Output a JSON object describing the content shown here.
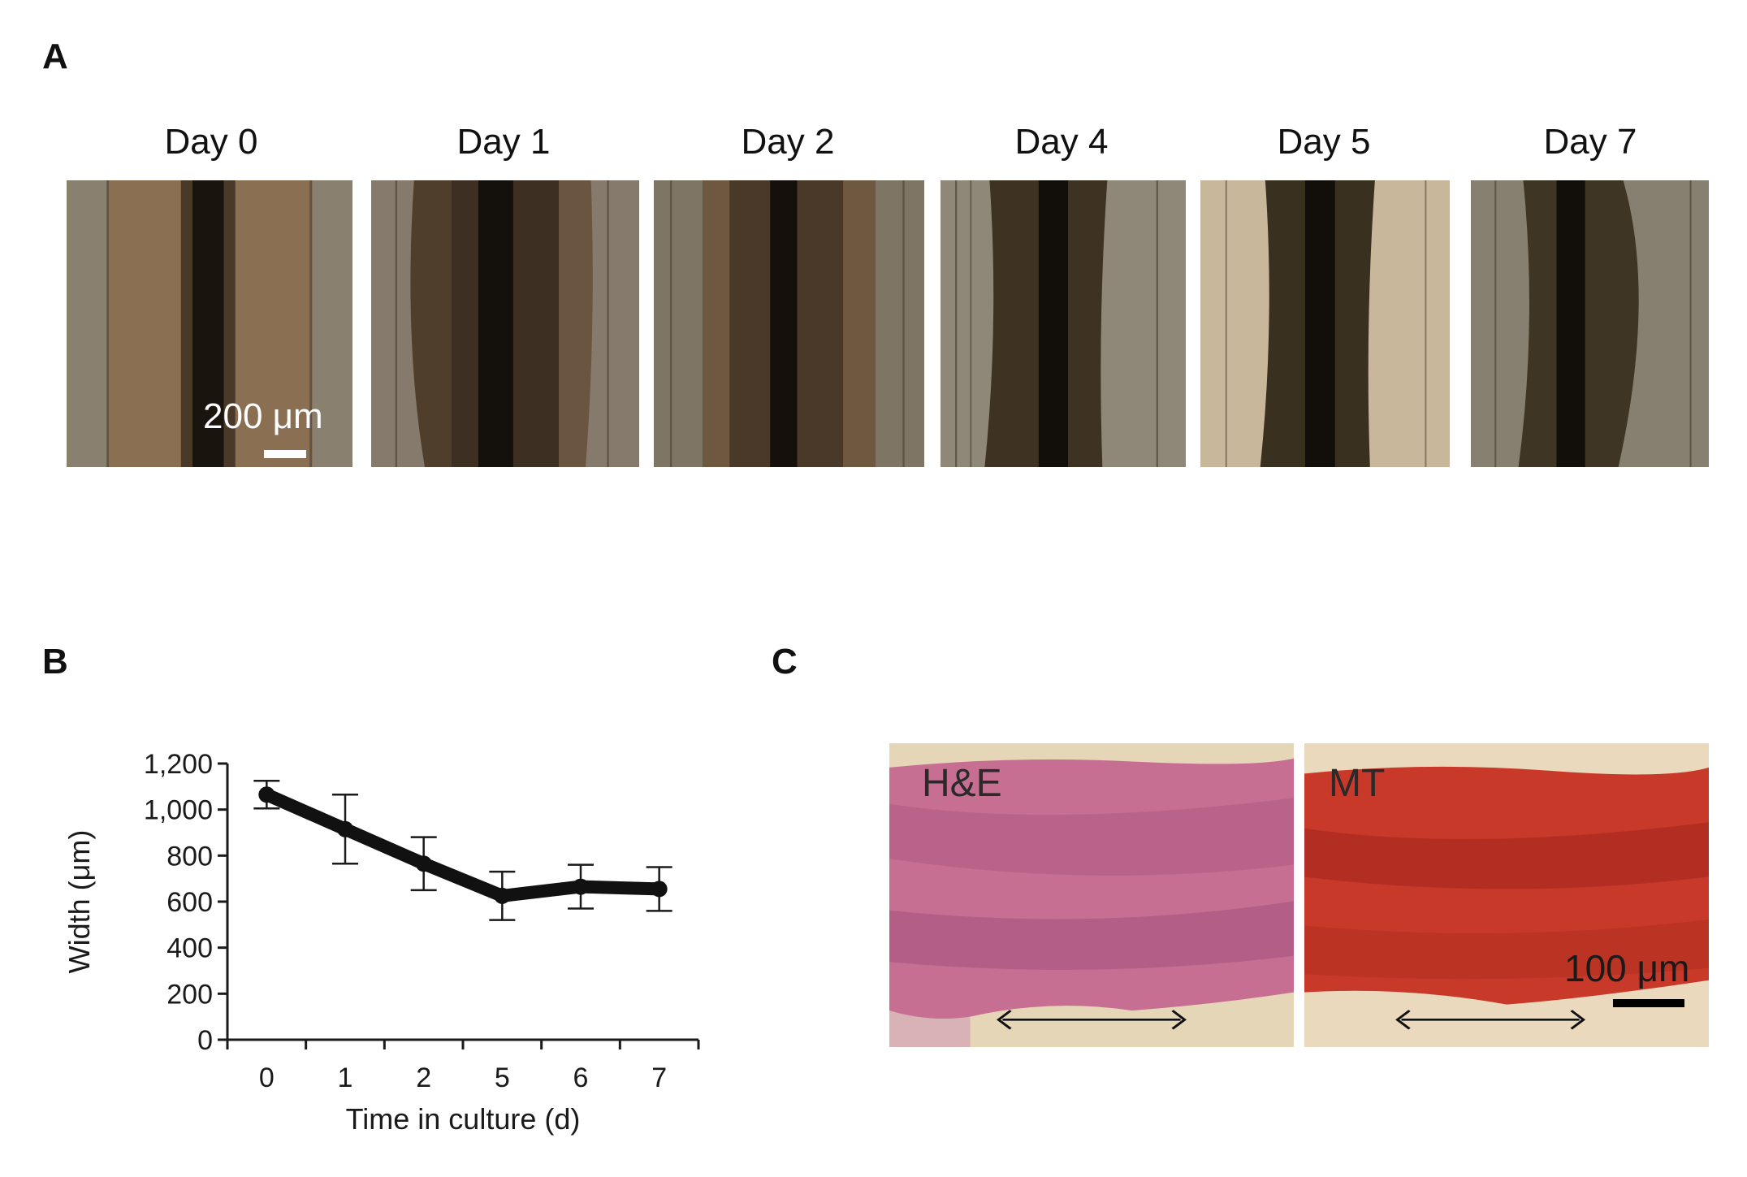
{
  "panels": {
    "a": "A",
    "b": "B",
    "c": "C"
  },
  "panel_a": {
    "days": [
      "Day 0",
      "Day 1",
      "Day 2",
      "Day 4",
      "Day 5",
      "Day 7"
    ],
    "scale_bar": "200 μm"
  },
  "panel_c": {
    "left_label": "H&E",
    "right_label": "MT",
    "scale_bar": "100 μm"
  },
  "chart_data": {
    "type": "line",
    "categories": [
      "0",
      "1",
      "2",
      "5",
      "6",
      "7"
    ],
    "series": [
      {
        "values": [
          1065,
          915,
          765,
          625,
          665,
          655
        ],
        "error": [
          60,
          150,
          115,
          105,
          95,
          95
        ]
      }
    ],
    "ylabel": "Width (μm)",
    "xlabel": "Time in culture (d)",
    "ylim": [
      0,
      1200
    ],
    "yticks": [
      "0",
      "200",
      "400",
      "600",
      "800",
      "1,000",
      "1,200"
    ],
    "grid": false,
    "line_color": "#111111"
  }
}
